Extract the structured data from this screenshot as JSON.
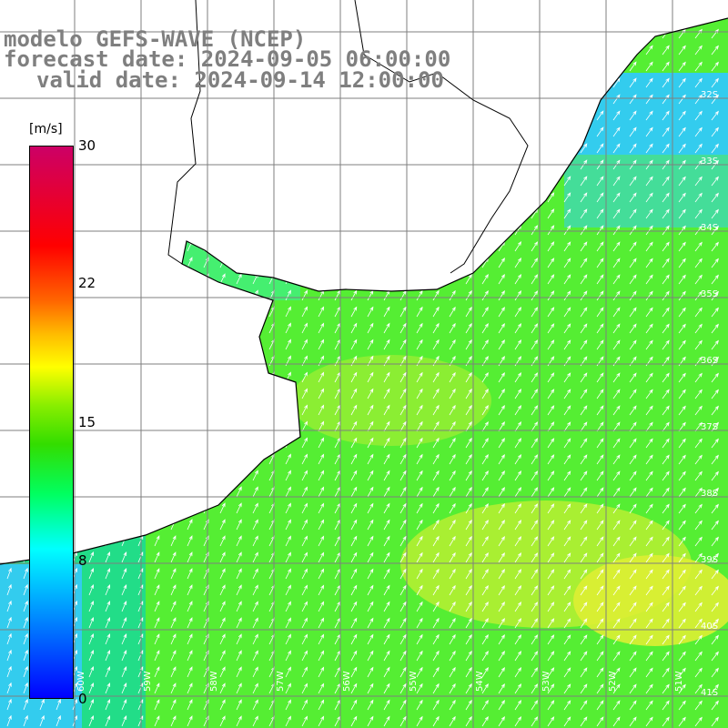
{
  "title": {
    "line1": "modelo GEFS-WAVE (NCEP)",
    "line2": "forecast date: 2024-09-05 06:00:00",
    "line3": "valid date: 2024-09-14 12:00:00"
  },
  "colorbar": {
    "unit": "[m/s]",
    "ticks": [
      "30",
      "22",
      "15",
      "8",
      "0"
    ],
    "min": 0,
    "max": 30
  },
  "lat_labels": [
    "32S",
    "33S",
    "34S",
    "35S",
    "36S",
    "37S",
    "38S",
    "39S",
    "40S",
    "41S"
  ],
  "lon_labels": [
    "60W",
    "59W",
    "58W",
    "57W",
    "56W",
    "55W",
    "54W",
    "53W",
    "52W",
    "51W"
  ],
  "colors": {
    "land": "#ffffff",
    "coast": "#000000",
    "grid": "#7f7f7f",
    "arrow": "#ffffff",
    "title": "#7f7f7f"
  }
}
